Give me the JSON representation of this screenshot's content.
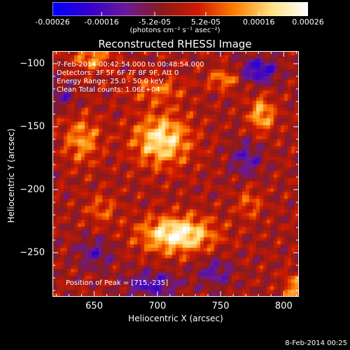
{
  "colorbar": {
    "tick_labels": [
      "-0.00026",
      "-0.00016",
      "-5.2e-05",
      "5.2e-05",
      "0.00016",
      "0.00026"
    ],
    "tick_values": [
      -0.00026,
      -0.00016,
      -5.2e-05,
      5.2e-05,
      0.00016,
      0.00026
    ],
    "range": [
      -0.00026,
      0.00026
    ],
    "units_label": "(photons cm⁻² s⁻¹ asec⁻²)",
    "colors": [
      "#0000ff",
      "#3300cc",
      "#6a1a9a",
      "#8b1a1a",
      "#d01a00",
      "#ff8000",
      "#ffe080",
      "#ffffff"
    ]
  },
  "chart_data": {
    "type": "heatmap",
    "title": "Reconstructed RHESSI Image",
    "xlabel": "Heliocentric X (arcsec)",
    "ylabel": "Heliocentric Y (arcsec)",
    "xlim": [
      617,
      812
    ],
    "ylim": [
      -285,
      -90
    ],
    "x_ticks": [
      650,
      700,
      750,
      800
    ],
    "y_ticks": [
      -100,
      -150,
      -200,
      -250
    ],
    "x_tick_labels": [
      "650",
      "700",
      "750",
      "800"
    ],
    "y_tick_labels": [
      "−100",
      "−150",
      "−200",
      "−250"
    ],
    "annotations": [
      "7-Feb-2014 00:42:54.000 to 00:48:54.000",
      "Detectors: 3F 5F 6F 7F 8F 9F, Att 0",
      "Energy Range: 25.0 - 50.0 keV",
      "Clean     Total counts: 1.06E+04"
    ],
    "peak_label": "Position of Peak = [715,-235]",
    "peak_position": [
      715,
      -235
    ],
    "bright_sources": [
      {
        "x": 715,
        "y": -235,
        "intensity": 1.0,
        "width": 28,
        "height": 14
      },
      {
        "x": 703,
        "y": -160,
        "intensity": 0.85,
        "width": 22,
        "height": 20
      },
      {
        "x": 782,
        "y": -140,
        "intensity": 0.65,
        "width": 10,
        "height": 14
      },
      {
        "x": 648,
        "y": -95,
        "intensity": 0.55,
        "width": 14,
        "height": 10
      },
      {
        "x": 752,
        "y": -112,
        "intensity": 0.5,
        "width": 12,
        "height": 8
      },
      {
        "x": 640,
        "y": -160,
        "intensity": 0.55,
        "width": 14,
        "height": 18
      },
      {
        "x": 808,
        "y": -278,
        "intensity": 0.55,
        "width": 8,
        "height": 12
      },
      {
        "x": 655,
        "y": -215,
        "intensity": 0.35,
        "width": 12,
        "height": 12
      },
      {
        "x": 700,
        "y": -120,
        "intensity": 0.4,
        "width": 20,
        "height": 10
      },
      {
        "x": 772,
        "y": -210,
        "intensity": 0.35,
        "width": 10,
        "height": 12
      }
    ],
    "dark_regions": [
      {
        "x": 780,
        "y": -105,
        "intensity": -0.7,
        "width": 14,
        "height": 10
      },
      {
        "x": 695,
        "y": -275,
        "intensity": -0.55,
        "width": 20,
        "height": 10
      },
      {
        "x": 650,
        "y": -250,
        "intensity": -0.4,
        "width": 14,
        "height": 12
      },
      {
        "x": 770,
        "y": -175,
        "intensity": -0.45,
        "width": 12,
        "height": 14
      },
      {
        "x": 625,
        "y": -125,
        "intensity": -0.35,
        "width": 10,
        "height": 10
      },
      {
        "x": 745,
        "y": -265,
        "intensity": -0.4,
        "width": 14,
        "height": 12
      }
    ]
  },
  "footer": {
    "timestamp": "8-Feb-2014 00:25"
  }
}
